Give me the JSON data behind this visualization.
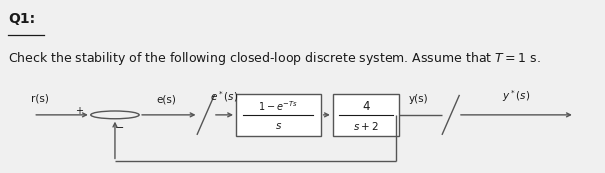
{
  "title": "Q1:",
  "subtitle": "Check the stability of the following closed-loop discrete system. Assume that $T = 1$ s.",
  "bg_color": "#f0f0f0",
  "white_bg": "#ffffff",
  "subtitle_bg": "#d8d8d8",
  "text_color": "#1a1a1a",
  "block_color": "#ffffff",
  "block_edge": "#555555",
  "arrow_color": "#333333",
  "line_color": "#555555",
  "r_label": "r(s)",
  "e_label": "e(s)",
  "estar_label": "$e^*(s)$",
  "zoh_num": "$1-e^{-Ts}$",
  "zoh_den": "$s$",
  "plant_num": "4",
  "plant_den": "$s+2$",
  "y_label": "y(s)",
  "ystar_label": "$y^*(s)$",
  "plus_label": "+",
  "minus_label": "−"
}
